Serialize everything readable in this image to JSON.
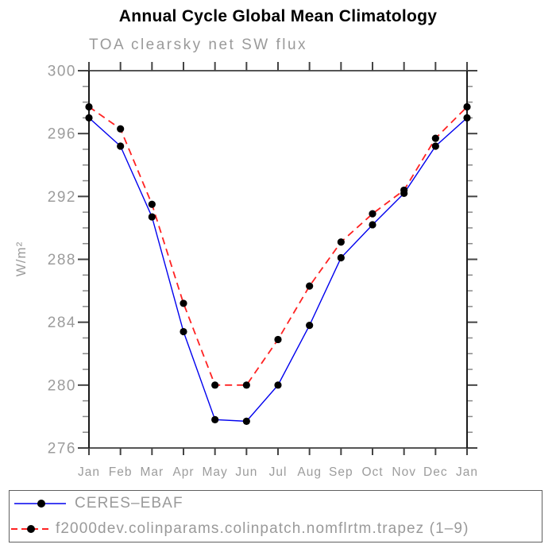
{
  "chart_data": {
    "type": "line",
    "title": "Annual Cycle Global Mean Climatology",
    "subtitle": "TOA clearsky net SW flux",
    "ylabel": "W/m²",
    "categories": [
      "Jan",
      "Feb",
      "Mar",
      "Apr",
      "May",
      "Jun",
      "Jul",
      "Aug",
      "Sep",
      "Oct",
      "Nov",
      "Dec",
      "Jan"
    ],
    "ylim": [
      276,
      300
    ],
    "ytick_major_step": 4,
    "ytick_minor_step": 1,
    "ytick_labels": [
      "276",
      "280",
      "284",
      "288",
      "292",
      "296",
      "300"
    ],
    "grid": "off",
    "legend_position": "bottom-box",
    "axis_text_color": "#9c9c9c",
    "frame_color": "#555555",
    "tick_color": "#444444",
    "minor_tick_color": "#8a8a8a",
    "marker_color": "#000000",
    "series": [
      {
        "name": "CERES–EBAF",
        "color": "#0000ee",
        "style": "solid",
        "marker": "filled-circle",
        "values": [
          297.0,
          295.2,
          290.7,
          283.4,
          277.8,
          277.7,
          280.0,
          283.8,
          288.1,
          290.2,
          292.2,
          295.2,
          297.0
        ]
      },
      {
        "name": "f2000dev.colinparams.colinpatch.nomflrtm.trapez (1–9)",
        "color": "#ff2222",
        "style": "dashed",
        "marker": "filled-circle",
        "values": [
          297.7,
          296.3,
          291.5,
          285.2,
          280.0,
          280.0,
          282.9,
          286.3,
          289.1,
          290.9,
          292.4,
          295.7,
          297.7
        ]
      }
    ]
  }
}
